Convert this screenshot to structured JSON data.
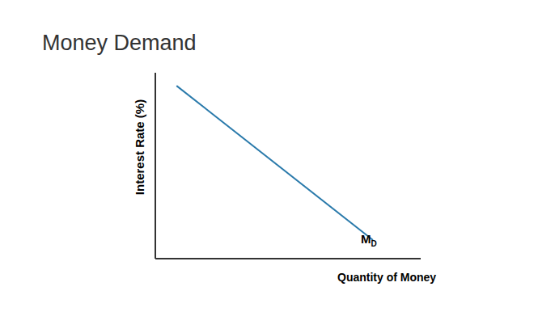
{
  "chart_data": {
    "type": "line",
    "title": "Money Demand",
    "x_label": "Quantity of Money",
    "y_label": "Interest Rate (%)",
    "xlim": [
      0,
      10
    ],
    "ylim": [
      0,
      10
    ],
    "tick_labels": false,
    "grid": false,
    "series": [
      {
        "name": "MD",
        "color": "#2a7aab",
        "x": [
          0.8,
          8.2
        ],
        "values": [
          9.3,
          1.0
        ]
      }
    ]
  }
}
